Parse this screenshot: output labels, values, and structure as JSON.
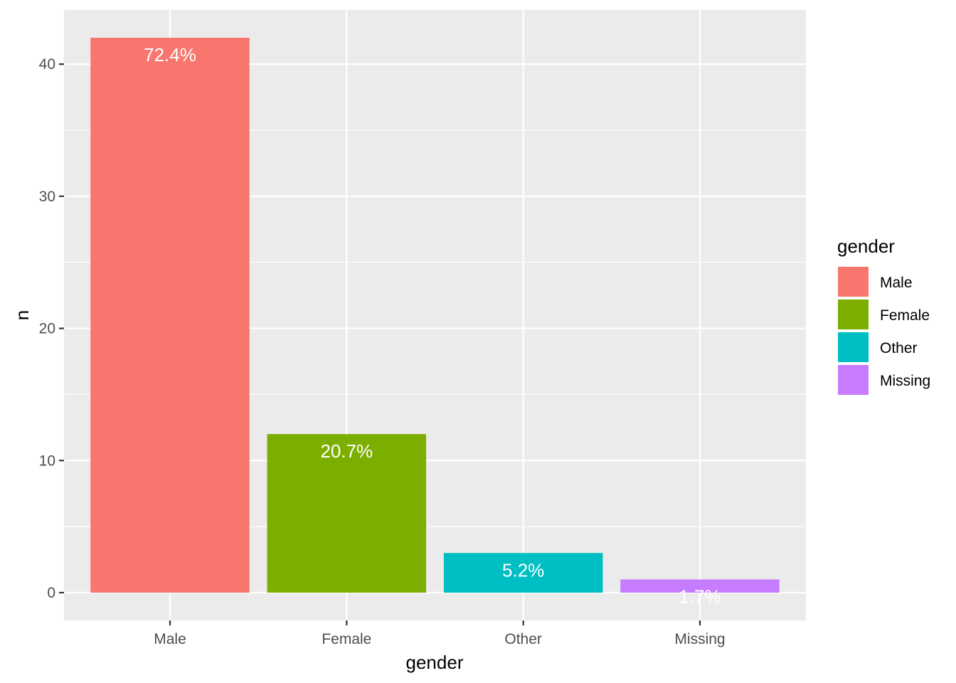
{
  "chart_data": {
    "type": "bar",
    "categories": [
      "Male",
      "Female",
      "Other",
      "Missing"
    ],
    "values": [
      42,
      12,
      3,
      1
    ],
    "labels": [
      "72.4%",
      "20.7%",
      "5.2%",
      "1.7%"
    ],
    "colors": [
      "#F8766D",
      "#7CAE00",
      "#00BFC4",
      "#C77CFF"
    ],
    "title": "",
    "xlabel": "gender",
    "ylabel": "n",
    "ylim": [
      -2.1,
      44.1
    ],
    "yticks": [
      0,
      10,
      20,
      30,
      40
    ],
    "grid": true,
    "panel_background": "#EBEBEB",
    "grid_color": "#FFFFFF",
    "legend": {
      "title": "gender",
      "position": "right",
      "entries": [
        "Male",
        "Female",
        "Other",
        "Missing"
      ]
    }
  }
}
